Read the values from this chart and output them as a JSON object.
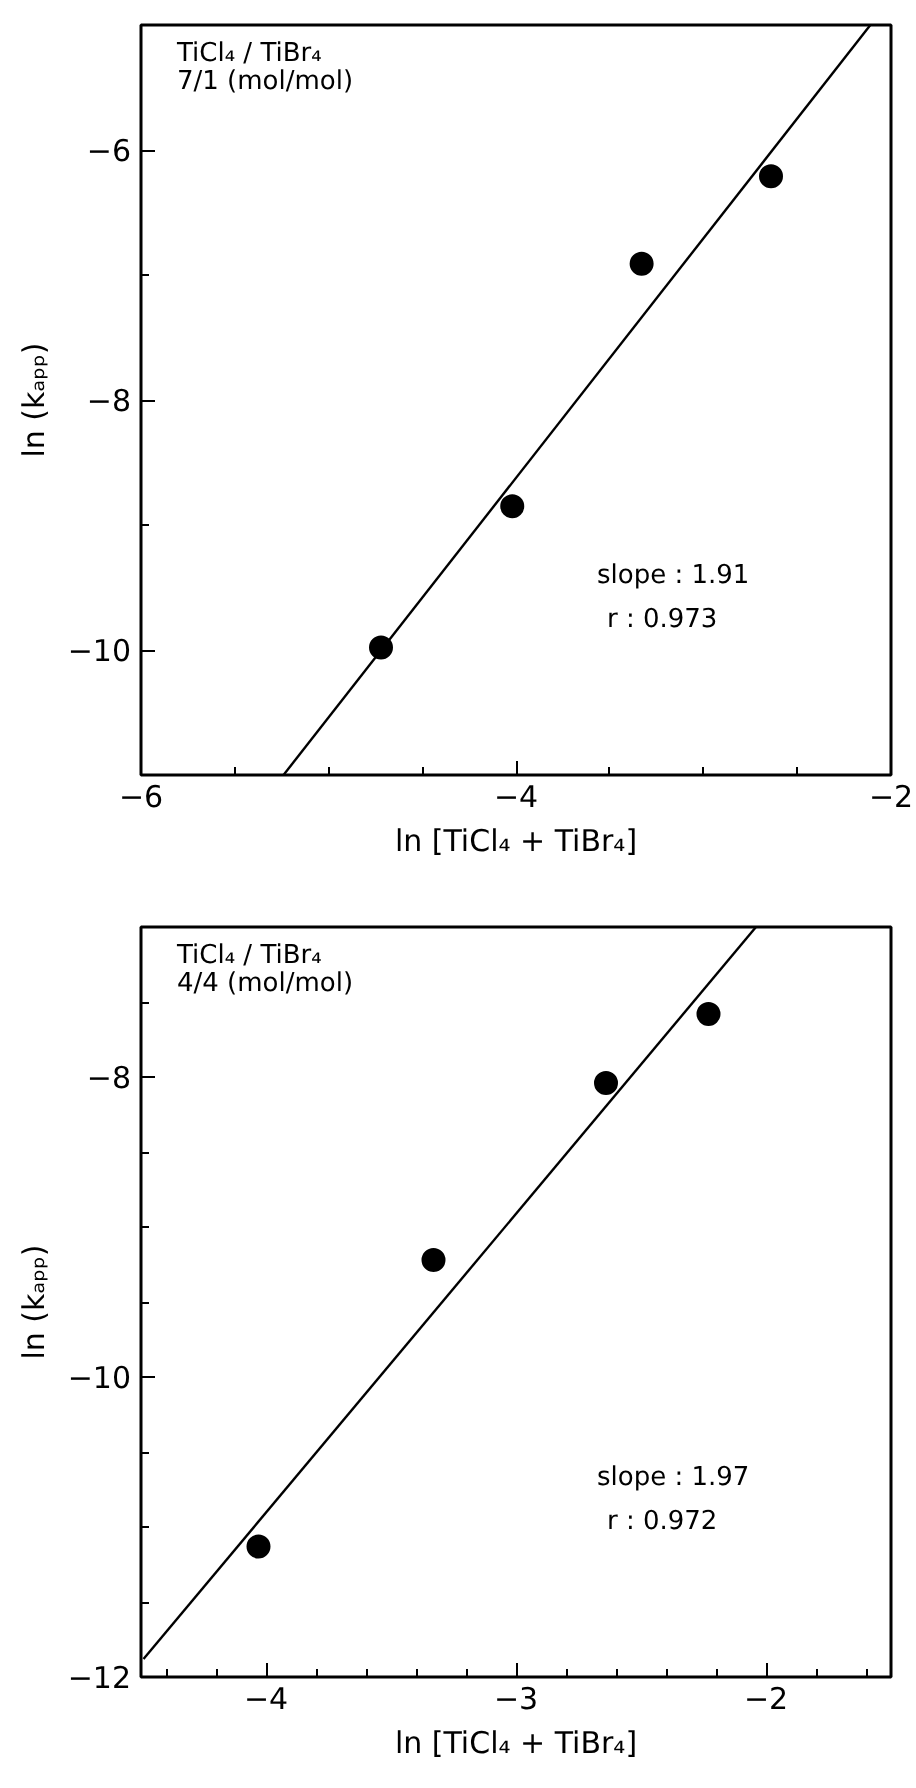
{
  "chart_data": [
    {
      "type": "scatter",
      "xlabel": "ln [TiCl₄ + TiBr₄]",
      "ylabel": "ln (kₐₚₚ)",
      "grid": false,
      "xlim": [
        -6,
        -2
      ],
      "ylim": [
        -11,
        -5
      ],
      "xticks": [
        {
          "value": -6,
          "label": "−6"
        },
        {
          "value": -5.5,
          "label": null
        },
        {
          "value": -5,
          "label": null
        },
        {
          "value": -4.5,
          "label": null
        },
        {
          "value": -4,
          "label": "−4"
        },
        {
          "value": -3.5,
          "label": null
        },
        {
          "value": -3,
          "label": null
        },
        {
          "value": -2.5,
          "label": null
        },
        {
          "value": -2,
          "label": "−2"
        }
      ],
      "yticks": [
        {
          "value": -11,
          "label": null
        },
        {
          "value": -10,
          "label": "−10"
        },
        {
          "value": -9,
          "label": null
        },
        {
          "value": -8,
          "label": "−8"
        },
        {
          "value": -7,
          "label": null
        },
        {
          "value": -6,
          "label": "−6"
        }
      ],
      "annotations": [
        "TiCl₄ / TiBr₄",
        "7/1 (mol/mol)",
        "slope : 1.91",
        "r : 0.973"
      ],
      "series": [
        {
          "color": "#000000",
          "marker": "circle",
          "x": [
            -4.72,
            -4.02,
            -3.33,
            -2.64
          ],
          "values": [
            -9.98,
            -8.85,
            -6.91,
            -6.21
          ]
        },
        {
          "type": "line",
          "color": "#000000",
          "x": [
            -5.24,
            -2.11
          ],
          "values": [
            -11,
            -5
          ]
        }
      ]
    },
    {
      "type": "scatter",
      "xlabel": "ln [TiCl₄ + TiBr₄]",
      "ylabel": "ln (kₐₚₚ)",
      "grid": false,
      "xlim": [
        -4.5,
        -1.5
      ],
      "ylim": [
        -12,
        -7
      ],
      "xticks": [
        {
          "value": -4.4,
          "label": null
        },
        {
          "value": -4.2,
          "label": null
        },
        {
          "value": -4,
          "label": "−4"
        },
        {
          "value": -3.8,
          "label": null
        },
        {
          "value": -3.6,
          "label": null
        },
        {
          "value": -3.4,
          "label": null
        },
        {
          "value": -3.2,
          "label": null
        },
        {
          "value": -3,
          "label": "−3"
        },
        {
          "value": -2.8,
          "label": null
        },
        {
          "value": -2.6,
          "label": null
        },
        {
          "value": -2.4,
          "label": null
        },
        {
          "value": -2.2,
          "label": null
        },
        {
          "value": -2,
          "label": "−2"
        },
        {
          "value": -1.8,
          "label": null
        },
        {
          "value": -1.6,
          "label": null
        }
      ],
      "yticks": [
        {
          "value": -12,
          "label": "−12"
        },
        {
          "value": -11.5,
          "label": null
        },
        {
          "value": -11,
          "label": null
        },
        {
          "value": -10.5,
          "label": null
        },
        {
          "value": -10,
          "label": "−10"
        },
        {
          "value": -9.5,
          "label": null
        },
        {
          "value": -9,
          "label": null
        },
        {
          "value": -8.5,
          "label": null
        },
        {
          "value": -8,
          "label": "−8"
        },
        {
          "value": -7.5,
          "label": null
        }
      ],
      "annotations": [
        "TiCl₄ / TiBr₄",
        "4/4 (mol/mol)",
        "slope : 1.97",
        "r : 0.972"
      ],
      "series": [
        {
          "color": "#000000",
          "marker": "circle",
          "x": [
            -4.03,
            -3.33,
            -2.64,
            -2.23
          ],
          "values": [
            -11.13,
            -9.22,
            -8.04,
            -7.58
          ]
        },
        {
          "type": "line",
          "color": "#000000",
          "x": [
            -4.49,
            -2.04
          ],
          "values": [
            -11.88,
            -7
          ]
        }
      ]
    }
  ]
}
